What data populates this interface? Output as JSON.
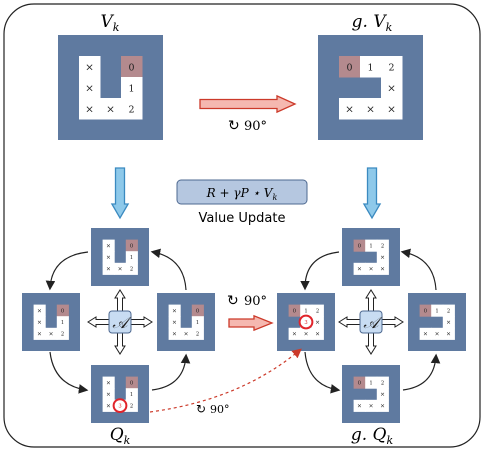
{
  "labels": {
    "vk_title": "V",
    "vk_sub": "k",
    "gvk_title": "g. V",
    "gvk_sub": "k",
    "qk_title": "Q",
    "qk_sub": "k",
    "gqk_title": "g. Q",
    "gqk_sub": "k",
    "rotate_label": "90°",
    "formula": "R + γP ⋆ V",
    "formula_sub": "k",
    "value_update": "Value Update",
    "action_symbol": "𝒜"
  },
  "grids": {
    "vk": [
      [
        "×",
        "",
        "0"
      ],
      [
        "×",
        "",
        "1"
      ],
      [
        "×",
        "×",
        "2"
      ]
    ],
    "gvk": [
      [
        "0",
        "1",
        "2"
      ],
      [
        "",
        "",
        "×"
      ],
      [
        "×",
        "×",
        "×"
      ]
    ],
    "small_left": [
      [
        "×",
        "",
        "0"
      ],
      [
        "×",
        "",
        "1"
      ],
      [
        "×",
        "×",
        "2"
      ]
    ],
    "small_right": [
      [
        "0",
        "1",
        "2"
      ],
      [
        "",
        "",
        "×"
      ],
      [
        "×",
        "×",
        "×"
      ]
    ],
    "highlight_value": "3"
  },
  "colors": {
    "frame": "#5f7aa0",
    "cell": "#ffffff",
    "goal": "#b48a8e",
    "blue_arrow": "#8ec9ea",
    "blue_arrow_stroke": "#3b8ac0",
    "red_arrow": "#f5b8b0",
    "red_arrow_stroke": "#cc3a2a",
    "circle": "#e1242b",
    "action_fill": "#c8dcf2",
    "box_fill": "#b5c7e0",
    "box_stroke": "#4d6890"
  }
}
